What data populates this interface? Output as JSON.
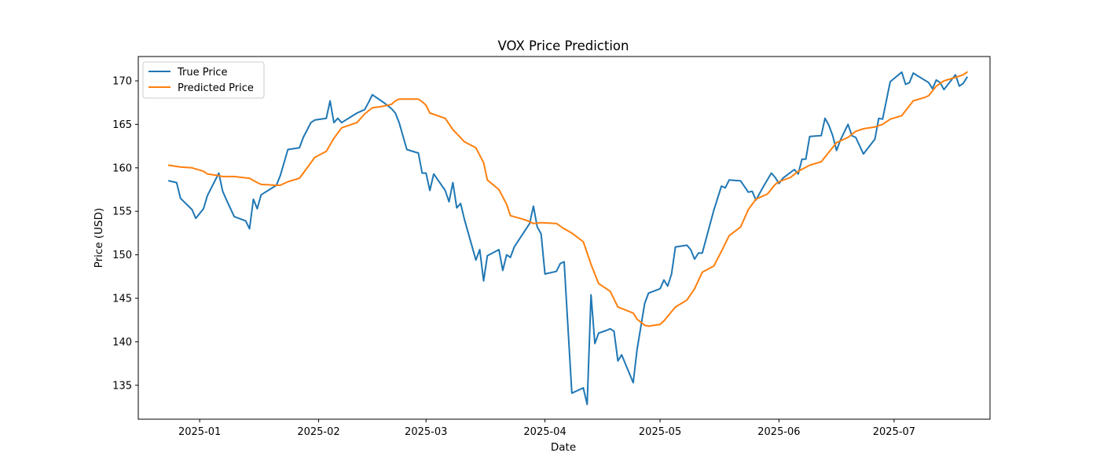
{
  "chart_data": {
    "type": "line",
    "title": "VOX Price Prediction",
    "xlabel": "Date",
    "ylabel": "Price (USD)",
    "xlim": [
      "2024-12-16",
      "2025-07-26"
    ],
    "ylim": [
      131.1,
      172.8
    ],
    "x_ticks": [
      "2025-01",
      "2025-02",
      "2025-03",
      "2025-04",
      "2025-05",
      "2025-06",
      "2025-07"
    ],
    "y_ticks": [
      135,
      140,
      145,
      150,
      155,
      160,
      165,
      170
    ],
    "grid": false,
    "legend": {
      "placement": "top-left",
      "entries": [
        "True Price",
        "Predicted Price"
      ]
    },
    "colors": {
      "true": "#1f77b4",
      "predicted": "#ff7f0e"
    },
    "series": [
      {
        "name": "True Price",
        "points": [
          [
            "2024-12-24",
            158.5
          ],
          [
            "2024-12-26",
            158.3
          ],
          [
            "2024-12-27",
            156.5
          ],
          [
            "2024-12-30",
            155.2
          ],
          [
            "2024-12-31",
            154.2
          ],
          [
            "2025-01-02",
            155.3
          ],
          [
            "2025-01-03",
            156.8
          ],
          [
            "2025-01-06",
            159.4
          ],
          [
            "2025-01-07",
            157.3
          ],
          [
            "2025-01-08",
            156.3
          ],
          [
            "2025-01-10",
            154.4
          ],
          [
            "2025-01-13",
            153.9
          ],
          [
            "2025-01-14",
            153.0
          ],
          [
            "2025-01-15",
            156.4
          ],
          [
            "2025-01-16",
            155.3
          ],
          [
            "2025-01-17",
            156.9
          ],
          [
            "2025-01-21",
            158.0
          ],
          [
            "2025-01-22",
            159.1
          ],
          [
            "2025-01-24",
            162.1
          ],
          [
            "2025-01-27",
            162.3
          ],
          [
            "2025-01-28",
            163.5
          ],
          [
            "2025-01-30",
            165.2
          ],
          [
            "2025-01-31",
            165.5
          ],
          [
            "2025-02-03",
            165.7
          ],
          [
            "2025-02-04",
            167.7
          ],
          [
            "2025-02-05",
            165.2
          ],
          [
            "2025-02-06",
            165.7
          ],
          [
            "2025-02-07",
            165.2
          ],
          [
            "2025-02-11",
            166.3
          ],
          [
            "2025-02-12",
            166.5
          ],
          [
            "2025-02-13",
            166.7
          ],
          [
            "2025-02-14",
            167.5
          ],
          [
            "2025-02-15",
            168.4
          ],
          [
            "2025-02-18",
            167.5
          ],
          [
            "2025-02-20",
            166.8
          ],
          [
            "2025-02-21",
            166.3
          ],
          [
            "2025-02-22",
            165.2
          ],
          [
            "2025-02-24",
            162.1
          ],
          [
            "2025-02-27",
            161.7
          ],
          [
            "2025-02-28",
            159.4
          ],
          [
            "2025-03-01",
            159.4
          ],
          [
            "2025-03-02",
            157.4
          ],
          [
            "2025-03-03",
            159.3
          ],
          [
            "2025-03-06",
            157.4
          ],
          [
            "2025-03-07",
            156.1
          ],
          [
            "2025-03-08",
            158.3
          ],
          [
            "2025-03-09",
            155.4
          ],
          [
            "2025-03-10",
            155.9
          ],
          [
            "2025-03-11",
            154.1
          ],
          [
            "2025-03-14",
            149.4
          ],
          [
            "2025-03-15",
            150.6
          ],
          [
            "2025-03-16",
            147.0
          ],
          [
            "2025-03-17",
            149.9
          ],
          [
            "2025-03-20",
            150.6
          ],
          [
            "2025-03-21",
            148.2
          ],
          [
            "2025-03-22",
            150.0
          ],
          [
            "2025-03-23",
            149.7
          ],
          [
            "2025-03-24",
            150.9
          ],
          [
            "2025-03-28",
            153.6
          ],
          [
            "2025-03-29",
            155.6
          ],
          [
            "2025-03-30",
            153.2
          ],
          [
            "2025-03-31",
            152.4
          ],
          [
            "2025-04-01",
            147.8
          ],
          [
            "2025-04-04",
            148.1
          ],
          [
            "2025-04-05",
            149.0
          ],
          [
            "2025-04-06",
            149.2
          ],
          [
            "2025-04-07",
            141.6
          ],
          [
            "2025-04-08",
            134.1
          ],
          [
            "2025-04-11",
            134.7
          ],
          [
            "2025-04-12",
            132.8
          ],
          [
            "2025-04-13",
            145.4
          ],
          [
            "2025-04-14",
            139.8
          ],
          [
            "2025-04-15",
            141.0
          ],
          [
            "2025-04-17",
            141.3
          ],
          [
            "2025-04-18",
            141.5
          ],
          [
            "2025-04-19",
            141.2
          ],
          [
            "2025-04-20",
            137.8
          ],
          [
            "2025-04-21",
            138.5
          ],
          [
            "2025-04-24",
            135.3
          ],
          [
            "2025-04-25",
            139.1
          ],
          [
            "2025-04-27",
            144.4
          ],
          [
            "2025-04-28",
            145.6
          ],
          [
            "2025-05-01",
            146.1
          ],
          [
            "2025-05-02",
            147.1
          ],
          [
            "2025-05-03",
            146.4
          ],
          [
            "2025-05-04",
            147.8
          ],
          [
            "2025-05-05",
            150.9
          ],
          [
            "2025-05-08",
            151.1
          ],
          [
            "2025-05-09",
            150.6
          ],
          [
            "2025-05-10",
            149.5
          ],
          [
            "2025-05-11",
            150.2
          ],
          [
            "2025-05-12",
            150.2
          ],
          [
            "2025-05-15",
            155.1
          ],
          [
            "2025-05-17",
            157.9
          ],
          [
            "2025-05-18",
            157.7
          ],
          [
            "2025-05-19",
            158.6
          ],
          [
            "2025-05-22",
            158.5
          ],
          [
            "2025-05-24",
            157.2
          ],
          [
            "2025-05-25",
            157.3
          ],
          [
            "2025-05-26",
            156.3
          ],
          [
            "2025-05-28",
            157.9
          ],
          [
            "2025-05-30",
            159.4
          ],
          [
            "2025-05-31",
            158.9
          ],
          [
            "2025-06-01",
            158.2
          ],
          [
            "2025-06-02",
            158.8
          ],
          [
            "2025-06-05",
            159.8
          ],
          [
            "2025-06-06",
            159.3
          ],
          [
            "2025-06-07",
            161.0
          ],
          [
            "2025-06-08",
            161.0
          ],
          [
            "2025-06-09",
            163.6
          ],
          [
            "2025-06-12",
            163.7
          ],
          [
            "2025-06-13",
            165.7
          ],
          [
            "2025-06-14",
            164.9
          ],
          [
            "2025-06-15",
            163.7
          ],
          [
            "2025-06-16",
            162.0
          ],
          [
            "2025-06-17",
            163.2
          ],
          [
            "2025-06-19",
            165.0
          ],
          [
            "2025-06-20",
            163.7
          ],
          [
            "2025-06-21",
            163.5
          ],
          [
            "2025-06-23",
            161.6
          ],
          [
            "2025-06-26",
            163.3
          ],
          [
            "2025-06-27",
            165.7
          ],
          [
            "2025-06-28",
            165.6
          ],
          [
            "2025-06-30",
            169.9
          ],
          [
            "2025-07-03",
            171.0
          ],
          [
            "2025-07-04",
            169.6
          ],
          [
            "2025-07-05",
            169.8
          ],
          [
            "2025-07-06",
            170.9
          ],
          [
            "2025-07-10",
            169.8
          ],
          [
            "2025-07-11",
            169.1
          ],
          [
            "2025-07-12",
            170.1
          ],
          [
            "2025-07-13",
            169.8
          ],
          [
            "2025-07-14",
            169.0
          ],
          [
            "2025-07-17",
            170.7
          ],
          [
            "2025-07-18",
            169.4
          ],
          [
            "2025-07-19",
            169.7
          ],
          [
            "2025-07-20",
            170.4
          ]
        ]
      },
      {
        "name": "Predicted Price",
        "points": [
          [
            "2024-12-24",
            160.3
          ],
          [
            "2024-12-27",
            160.1
          ],
          [
            "2024-12-30",
            160.0
          ],
          [
            "2025-01-02",
            159.6
          ],
          [
            "2025-01-03",
            159.3
          ],
          [
            "2025-01-06",
            159.1
          ],
          [
            "2025-01-07",
            159.0
          ],
          [
            "2025-01-10",
            159.0
          ],
          [
            "2025-01-14",
            158.8
          ],
          [
            "2025-01-16",
            158.3
          ],
          [
            "2025-01-17",
            158.1
          ],
          [
            "2025-01-21",
            158.0
          ],
          [
            "2025-01-22",
            158.0
          ],
          [
            "2025-01-24",
            158.4
          ],
          [
            "2025-01-27",
            158.8
          ],
          [
            "2025-01-28",
            159.4
          ],
          [
            "2025-01-31",
            161.2
          ],
          [
            "2025-02-03",
            161.9
          ],
          [
            "2025-02-05",
            163.4
          ],
          [
            "2025-02-07",
            164.6
          ],
          [
            "2025-02-11",
            165.2
          ],
          [
            "2025-02-13",
            166.2
          ],
          [
            "2025-02-15",
            166.9
          ],
          [
            "2025-02-18",
            167.1
          ],
          [
            "2025-02-20",
            167.3
          ],
          [
            "2025-02-21",
            167.7
          ],
          [
            "2025-02-22",
            167.9
          ],
          [
            "2025-02-25",
            167.9
          ],
          [
            "2025-02-27",
            167.9
          ],
          [
            "2025-02-28",
            167.6
          ],
          [
            "2025-03-01",
            167.2
          ],
          [
            "2025-03-02",
            166.3
          ],
          [
            "2025-03-06",
            165.7
          ],
          [
            "2025-03-08",
            164.4
          ],
          [
            "2025-03-11",
            163.0
          ],
          [
            "2025-03-14",
            162.3
          ],
          [
            "2025-03-16",
            160.6
          ],
          [
            "2025-03-17",
            158.6
          ],
          [
            "2025-03-20",
            157.5
          ],
          [
            "2025-03-22",
            155.8
          ],
          [
            "2025-03-23",
            154.5
          ],
          [
            "2025-03-27",
            154.0
          ],
          [
            "2025-03-29",
            153.6
          ],
          [
            "2025-03-31",
            153.7
          ],
          [
            "2025-04-04",
            153.6
          ],
          [
            "2025-04-06",
            153.0
          ],
          [
            "2025-04-08",
            152.5
          ],
          [
            "2025-04-11",
            151.5
          ],
          [
            "2025-04-13",
            148.9
          ],
          [
            "2025-04-15",
            146.7
          ],
          [
            "2025-04-18",
            145.8
          ],
          [
            "2025-04-20",
            144.0
          ],
          [
            "2025-04-24",
            143.3
          ],
          [
            "2025-04-25",
            142.6
          ],
          [
            "2025-04-27",
            141.9
          ],
          [
            "2025-04-28",
            141.8
          ],
          [
            "2025-05-01",
            142.0
          ],
          [
            "2025-05-02",
            142.4
          ],
          [
            "2025-05-05",
            144.0
          ],
          [
            "2025-05-08",
            144.8
          ],
          [
            "2025-05-10",
            146.1
          ],
          [
            "2025-05-12",
            148.0
          ],
          [
            "2025-05-15",
            148.7
          ],
          [
            "2025-05-17",
            150.4
          ],
          [
            "2025-05-19",
            152.2
          ],
          [
            "2025-05-22",
            153.2
          ],
          [
            "2025-05-24",
            155.2
          ],
          [
            "2025-05-26",
            156.4
          ],
          [
            "2025-05-29",
            157.0
          ],
          [
            "2025-05-31",
            158.1
          ],
          [
            "2025-06-01",
            158.4
          ],
          [
            "2025-06-04",
            158.9
          ],
          [
            "2025-06-06",
            159.6
          ],
          [
            "2025-06-09",
            160.3
          ],
          [
            "2025-06-12",
            160.7
          ],
          [
            "2025-06-14",
            161.8
          ],
          [
            "2025-06-16",
            162.9
          ],
          [
            "2025-06-19",
            163.5
          ],
          [
            "2025-06-21",
            164.2
          ],
          [
            "2025-06-23",
            164.5
          ],
          [
            "2025-06-26",
            164.7
          ],
          [
            "2025-06-28",
            165.0
          ],
          [
            "2025-06-30",
            165.6
          ],
          [
            "2025-07-03",
            166.0
          ],
          [
            "2025-07-06",
            167.7
          ],
          [
            "2025-07-09",
            168.1
          ],
          [
            "2025-07-10",
            168.3
          ],
          [
            "2025-07-12",
            169.4
          ],
          [
            "2025-07-14",
            170.0
          ],
          [
            "2025-07-17",
            170.4
          ],
          [
            "2025-07-19",
            170.7
          ],
          [
            "2025-07-20",
            171.0
          ]
        ]
      }
    ]
  }
}
